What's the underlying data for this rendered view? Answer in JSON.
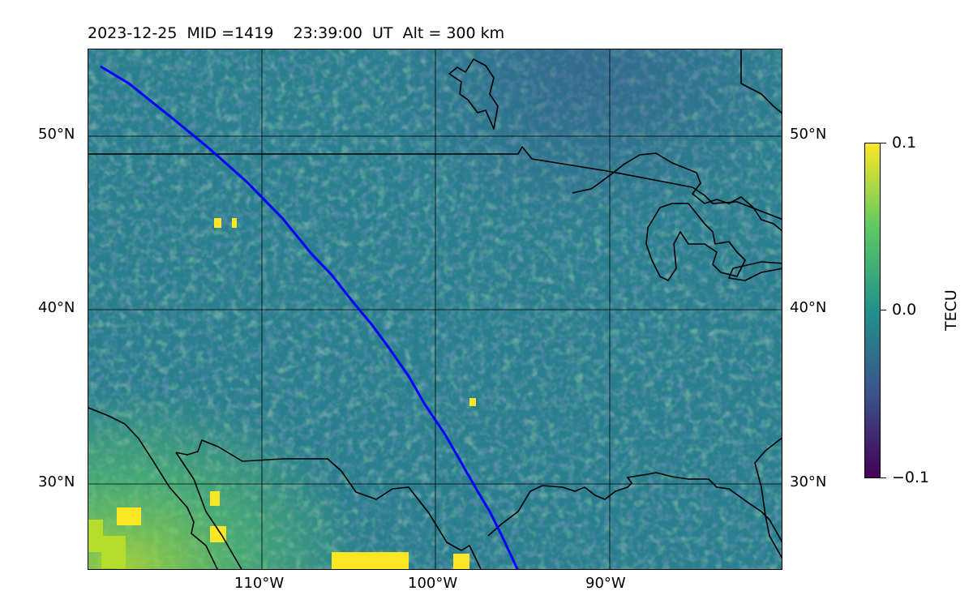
{
  "title": "2023-12-25  MID =1419    23:39:00  UT  Alt = 300 km",
  "map": {
    "projection": "equirectangular",
    "lon_range": [
      -120,
      -80
    ],
    "lat_range": [
      25,
      55
    ],
    "field": "TEC perturbation",
    "track_color": "#0000ff",
    "coast_color": "#000000",
    "colormap": "viridis",
    "gridlines": true
  },
  "lat_ticks": [
    "50°N",
    "40°N",
    "30°N"
  ],
  "lon_ticks": [
    "110°W",
    "100°W",
    "90°W"
  ],
  "colorbar": {
    "label": "TECU",
    "max_label": "0.1",
    "mid_label": "0.0",
    "min_label": "−0.1",
    "max": 0.1,
    "min": -0.1
  }
}
